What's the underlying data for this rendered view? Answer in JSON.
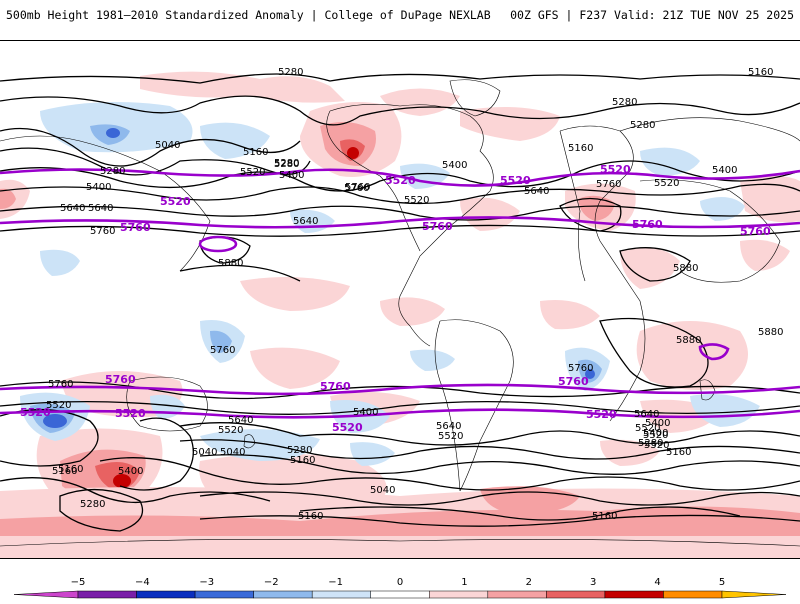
{
  "header": {
    "left_title": "500mb Height 1981–2010 Standardized Anomaly | College of DuPage NEXLAB",
    "right_title": "00Z GFS | F237 Valid: 21Z TUE NOV 25 2025"
  },
  "map": {
    "contour_labels_black": [
      "5280",
      "5160",
      "5280",
      "5040",
      "5160",
      "5280",
      "5520",
      "5400",
      "5280",
      "5160",
      "5400",
      "5640",
      "5760",
      "5640",
      "5880",
      "5760",
      "5640",
      "5760",
      "5880",
      "5880",
      "5880",
      "5760",
      "5760",
      "5760",
      "5520",
      "5640",
      "5520",
      "5400",
      "5280",
      "5160",
      "5040",
      "5040",
      "5160",
      "5520",
      "5640",
      "5400",
      "5520",
      "5640",
      "5520",
      "5400",
      "5280",
      "5160",
      "5160",
      "5400",
      "5280",
      "5160",
      "5280",
      "5520",
      "5400",
      "5520",
      "5640",
      "5760",
      "5400",
      "5280",
      "5040",
      "5160",
      "5520"
    ],
    "contour_labels_purple": [
      "5520",
      "5760",
      "5520",
      "5760",
      "5520",
      "5760",
      "5760",
      "5520",
      "5760",
      "5760",
      "5760",
      "5520",
      "5520",
      "5520",
      "5520"
    ],
    "colors": {
      "neg1": "#cce3f7",
      "neg2": "#8fb9ec",
      "neg3": "#3a66d6",
      "pos1": "#fbd5d6",
      "pos2": "#f5a1a3",
      "pos3": "#e86262",
      "pos4": "#c40000",
      "contour": "#000000",
      "highlight": "#9900cc"
    }
  },
  "colorbar": {
    "ticks": [
      "−5",
      "−4",
      "−3",
      "−2",
      "−1",
      "0",
      "1",
      "2",
      "3",
      "4",
      "5"
    ],
    "segments": [
      "#cc44cc",
      "#7a1fa8",
      "#0a2fbf",
      "#3a6ad8",
      "#8fb9ec",
      "#cfe3f7",
      "#ffffff",
      "#fbd5d6",
      "#f5a1a3",
      "#e86262",
      "#c40000",
      "#ff8c00",
      "#ffc400"
    ]
  }
}
